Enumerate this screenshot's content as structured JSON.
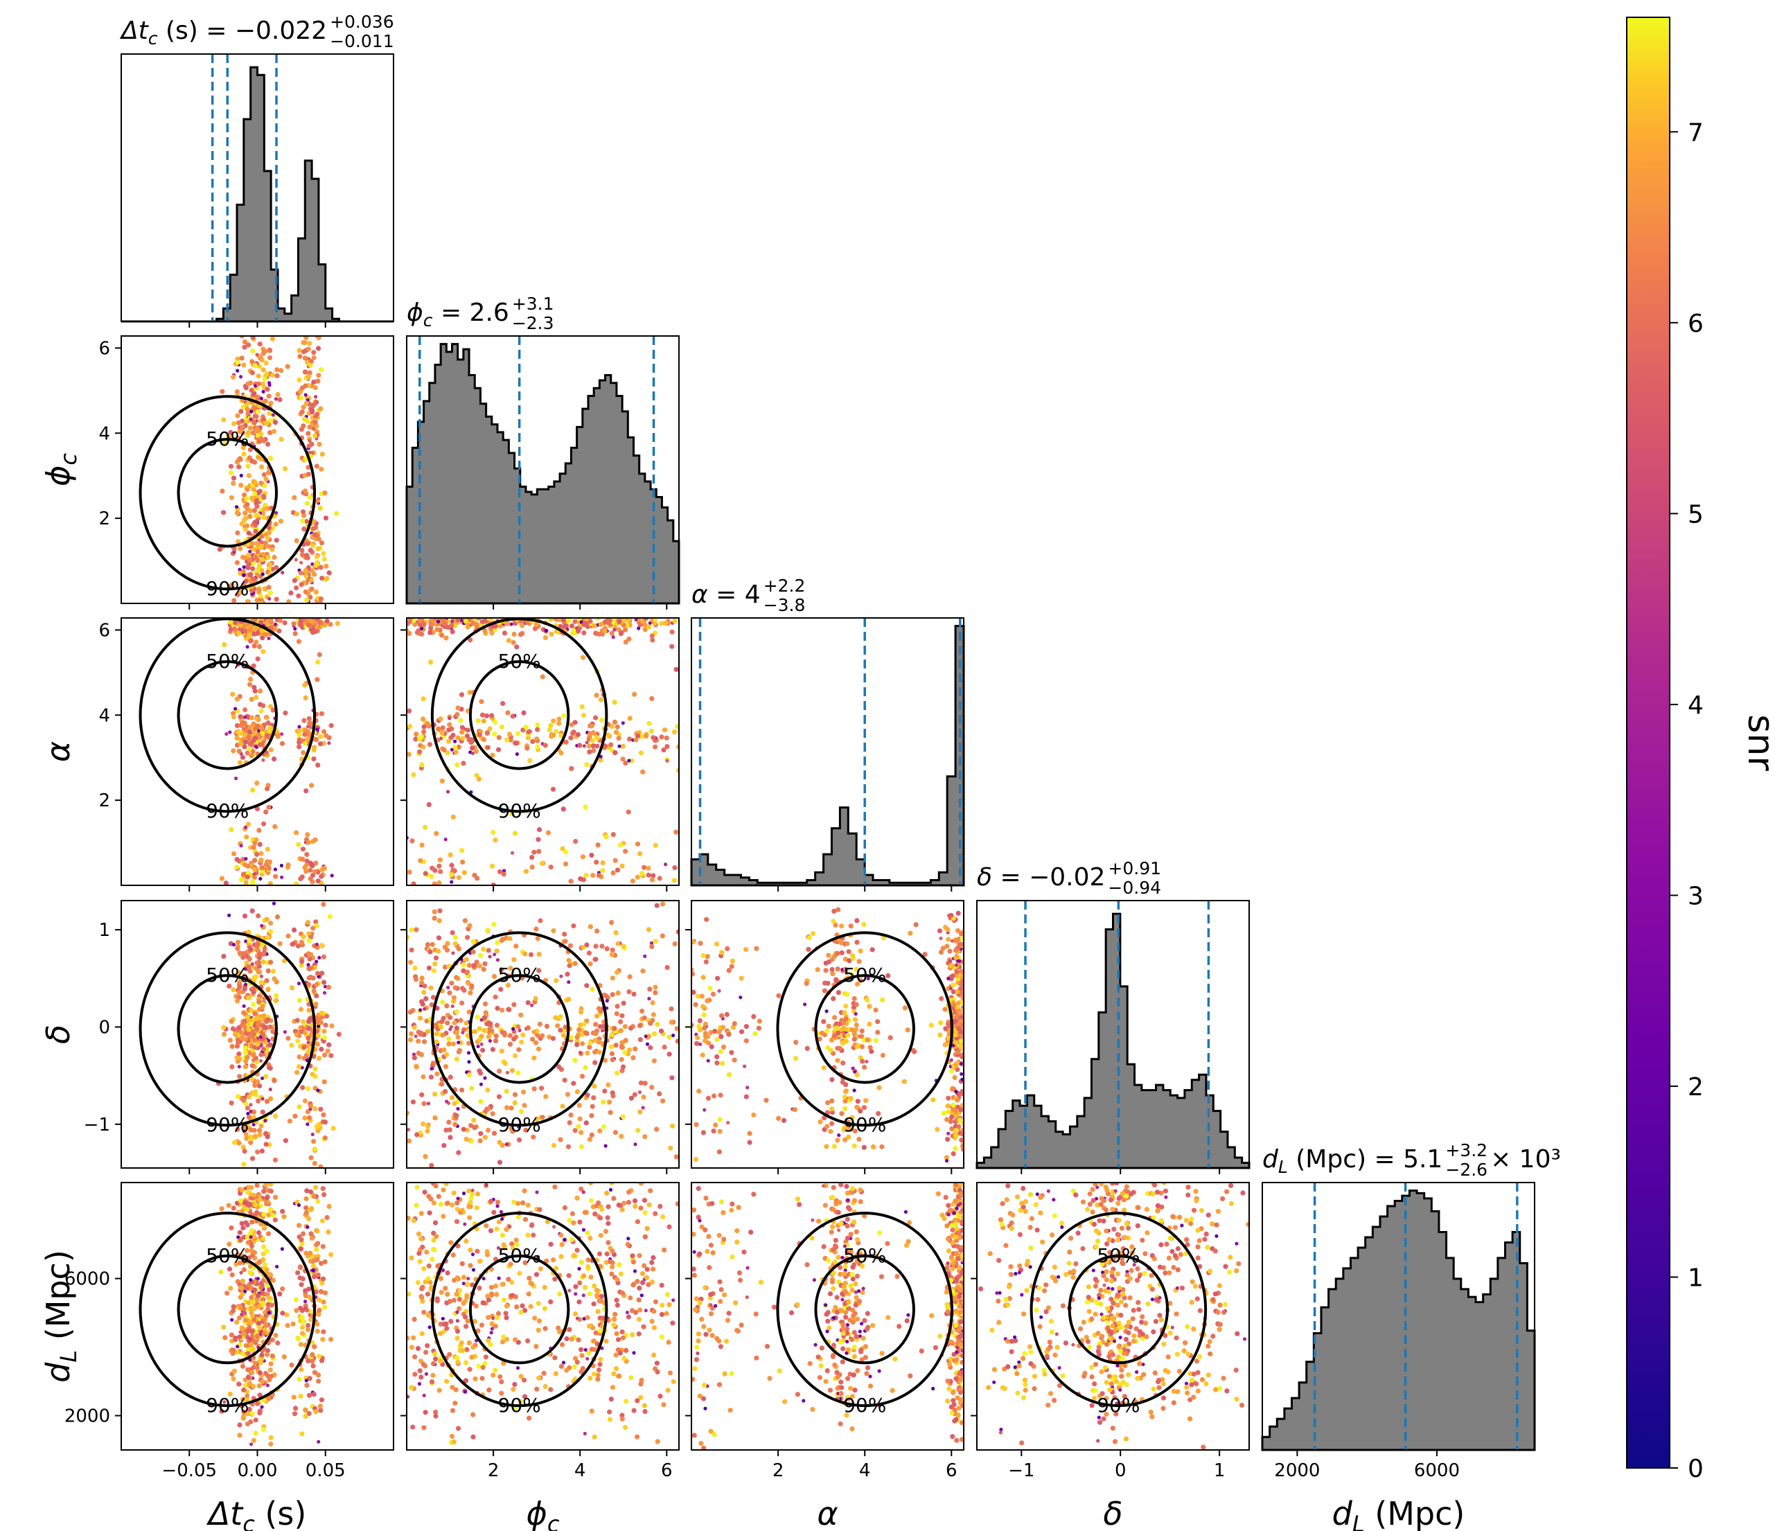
{
  "chart_data": {
    "type": "corner",
    "parameters": [
      {
        "key": "tc",
        "label_base": "Δt",
        "label_sub": "c",
        "label_unit": " (s)",
        "title_value": " = −0.022",
        "title_plus": "+0.036",
        "title_minus": "−0.011",
        "title_suffix": "",
        "range": [
          -0.1,
          0.1
        ],
        "ticks": [
          -0.05,
          0.0,
          0.05
        ],
        "tick_labels": [
          "−0.05",
          "0.00",
          "0.05"
        ],
        "quantiles": [
          -0.033,
          -0.022,
          0.014
        ]
      },
      {
        "key": "phic",
        "label_base": "ϕ",
        "label_sub": "c",
        "label_unit": "",
        "title_value": " = 2.6",
        "title_plus": "+3.1",
        "title_minus": "−2.3",
        "title_suffix": "",
        "range": [
          0,
          6.283
        ],
        "ticks": [
          2,
          4,
          6
        ],
        "tick_labels": [
          "2",
          "4",
          "6"
        ],
        "quantiles": [
          0.3,
          2.6,
          5.7
        ]
      },
      {
        "key": "alpha",
        "label_base": "α",
        "label_sub": "",
        "label_unit": "",
        "title_value": " = 4",
        "title_plus": "+2.2",
        "title_minus": "−3.8",
        "title_suffix": "",
        "range": [
          0,
          6.283
        ],
        "ticks": [
          2,
          4,
          6
        ],
        "tick_labels": [
          "2",
          "4",
          "6"
        ],
        "quantiles": [
          0.2,
          4.0,
          6.2
        ]
      },
      {
        "key": "delta",
        "label_base": "δ",
        "label_sub": "",
        "label_unit": "",
        "title_value": " = −0.02",
        "title_plus": "+0.91",
        "title_minus": "−0.94",
        "title_suffix": "",
        "range": [
          -1.45,
          1.3
        ],
        "ticks": [
          -1,
          0,
          1
        ],
        "tick_labels": [
          "−1",
          "0",
          "1"
        ],
        "quantiles": [
          -0.96,
          -0.02,
          0.89
        ]
      },
      {
        "key": "dL",
        "label_base": "d",
        "label_sub": "L",
        "label_unit": " (Mpc)",
        "title_value": " = 5.1",
        "title_plus": "+3.2",
        "title_minus": "−2.6",
        "title_suffix": " × 10³",
        "range": [
          1000,
          8800
        ],
        "ticks": [
          2000,
          6000
        ],
        "tick_labels": [
          "2000",
          "6000"
        ],
        "quantiles": [
          2500,
          5100,
          8300
        ]
      }
    ],
    "histograms": {
      "tc": [
        0,
        0,
        0,
        0,
        0,
        0,
        0,
        0,
        0,
        0,
        0,
        0,
        0,
        0,
        0.01,
        0.05,
        0.18,
        0.45,
        0.78,
        0.98,
        0.95,
        0.58,
        0.2,
        0.05,
        0.03,
        0.1,
        0.32,
        0.62,
        0.55,
        0.22,
        0.05,
        0.01,
        0,
        0,
        0,
        0,
        0,
        0,
        0,
        0
      ],
      "phic": [
        0.45,
        0.6,
        0.7,
        0.78,
        0.85,
        0.92,
        1.0,
        0.97,
        1.0,
        0.94,
        0.98,
        0.88,
        0.83,
        0.77,
        0.72,
        0.69,
        0.66,
        0.63,
        0.58,
        0.52,
        0.45,
        0.43,
        0.42,
        0.44,
        0.44,
        0.45,
        0.47,
        0.5,
        0.54,
        0.6,
        0.68,
        0.75,
        0.8,
        0.83,
        0.86,
        0.88,
        0.85,
        0.8,
        0.74,
        0.64,
        0.57,
        0.5,
        0.47,
        0.44,
        0.41,
        0.37,
        0.32,
        0.24
      ],
      "alpha": [
        0.1,
        0.12,
        0.08,
        0.06,
        0.04,
        0.04,
        0.03,
        0.02,
        0.01,
        0.01,
        0.01,
        0.01,
        0.01,
        0.01,
        0.02,
        0.05,
        0.12,
        0.22,
        0.3,
        0.2,
        0.1,
        0.04,
        0.02,
        0.02,
        0.01,
        0.01,
        0.01,
        0.01,
        0.01,
        0.02,
        0.05,
        0.42,
        1.0
      ],
      "delta": [
        0.02,
        0.04,
        0.08,
        0.15,
        0.22,
        0.26,
        0.24,
        0.28,
        0.24,
        0.2,
        0.18,
        0.14,
        0.13,
        0.16,
        0.2,
        0.27,
        0.42,
        0.6,
        0.92,
        0.98,
        0.7,
        0.4,
        0.32,
        0.3,
        0.3,
        0.32,
        0.3,
        0.28,
        0.27,
        0.3,
        0.34,
        0.36,
        0.28,
        0.22,
        0.14,
        0.08,
        0.04,
        0.02
      ],
      "dL": [
        0.05,
        0.09,
        0.12,
        0.16,
        0.2,
        0.26,
        0.34,
        0.45,
        0.55,
        0.62,
        0.66,
        0.7,
        0.74,
        0.78,
        0.82,
        0.86,
        0.9,
        0.94,
        0.96,
        0.98,
        1.0,
        0.99,
        0.97,
        0.92,
        0.84,
        0.74,
        0.66,
        0.62,
        0.59,
        0.57,
        0.6,
        0.66,
        0.74,
        0.8,
        0.84,
        0.72,
        0.46
      ]
    },
    "scatter_samples_per_panel": 700,
    "colorbar": {
      "label": "snr",
      "min": 0,
      "max": 7.6,
      "ticks": [
        0,
        1,
        2,
        3,
        4,
        5,
        6,
        7
      ],
      "tick_labels": [
        "0",
        "1",
        "2",
        "3",
        "4",
        "5",
        "6",
        "7"
      ],
      "colormap": "plasma"
    },
    "contour_labels": [
      "50%",
      "90%"
    ],
    "colors": {
      "hist_fill": "#808080",
      "quantile_line": "#1f77b4",
      "contour": "#000000"
    }
  }
}
